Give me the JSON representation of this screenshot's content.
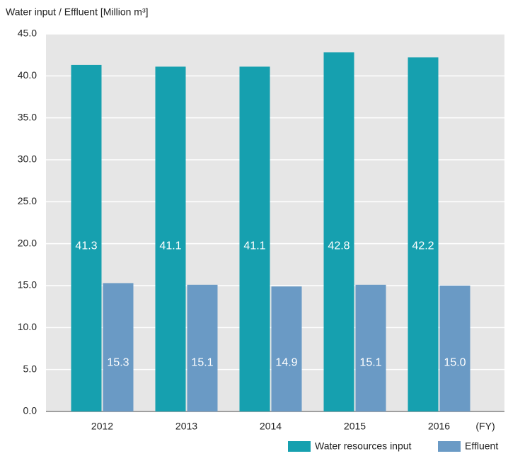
{
  "chart_data": {
    "type": "bar",
    "y_label": "Water input / Effluent [Million m³]",
    "x_label": "(FY)",
    "categories": [
      "2012",
      "2013",
      "2014",
      "2015",
      "2016"
    ],
    "series": [
      {
        "name": "Water resources input",
        "color": "#16a0af",
        "values": [
          41.3,
          41.1,
          41.1,
          42.8,
          42.2
        ],
        "value_labels": [
          "41.3",
          "41.1",
          "41.1",
          "42.8",
          "42.2"
        ]
      },
      {
        "name": "Effluent",
        "color": "#6a9ac5",
        "values": [
          15.3,
          15.1,
          14.9,
          15.1,
          15.0
        ],
        "value_labels": [
          "15.3",
          "15.1",
          "14.9",
          "15.1",
          "15.0"
        ]
      }
    ],
    "ylim": [
      0,
      45
    ],
    "yticks": [
      {
        "value": 0,
        "label": "0.0"
      },
      {
        "value": 5,
        "label": "5.0"
      },
      {
        "value": 10,
        "label": "10.0"
      },
      {
        "value": 15,
        "label": "15.0"
      },
      {
        "value": 20,
        "label": "20.0"
      },
      {
        "value": 25,
        "label": "25.0"
      },
      {
        "value": 30,
        "label": "30.0"
      },
      {
        "value": 35,
        "label": "35.0"
      },
      {
        "value": 40,
        "label": "40.0"
      },
      {
        "value": 45,
        "label": "45.0"
      }
    ],
    "grid": true
  }
}
